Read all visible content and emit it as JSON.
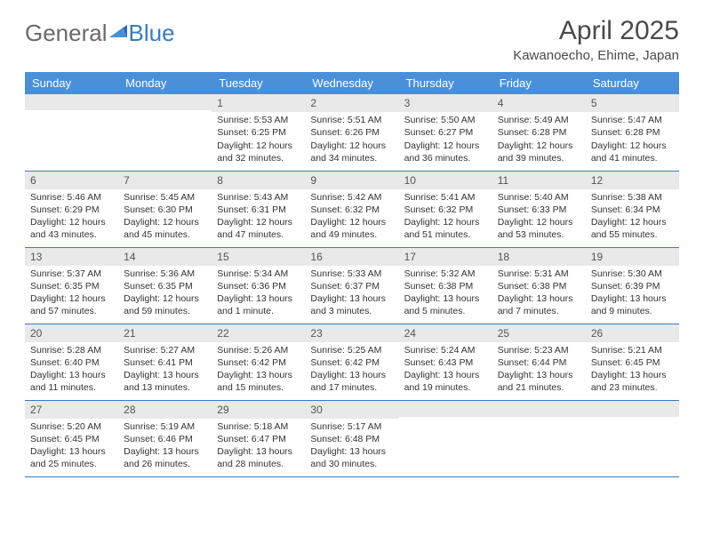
{
  "brand": {
    "part1": "General",
    "part2": "Blue"
  },
  "title": "April 2025",
  "location": "Kawanoecho, Ehime, Japan",
  "weekday_header_bg": "#4a90d9",
  "weekday_header_fg": "#ffffff",
  "daynum_bg": "#e9e9e9",
  "border_color": "#3a7bbf",
  "weekdays": [
    "Sunday",
    "Monday",
    "Tuesday",
    "Wednesday",
    "Thursday",
    "Friday",
    "Saturday"
  ],
  "weeks": [
    [
      null,
      null,
      {
        "n": "1",
        "sunrise": "5:53 AM",
        "sunset": "6:25 PM",
        "day": "12 hours and 32 minutes."
      },
      {
        "n": "2",
        "sunrise": "5:51 AM",
        "sunset": "6:26 PM",
        "day": "12 hours and 34 minutes."
      },
      {
        "n": "3",
        "sunrise": "5:50 AM",
        "sunset": "6:27 PM",
        "day": "12 hours and 36 minutes."
      },
      {
        "n": "4",
        "sunrise": "5:49 AM",
        "sunset": "6:28 PM",
        "day": "12 hours and 39 minutes."
      },
      {
        "n": "5",
        "sunrise": "5:47 AM",
        "sunset": "6:28 PM",
        "day": "12 hours and 41 minutes."
      }
    ],
    [
      {
        "n": "6",
        "sunrise": "5:46 AM",
        "sunset": "6:29 PM",
        "day": "12 hours and 43 minutes."
      },
      {
        "n": "7",
        "sunrise": "5:45 AM",
        "sunset": "6:30 PM",
        "day": "12 hours and 45 minutes."
      },
      {
        "n": "8",
        "sunrise": "5:43 AM",
        "sunset": "6:31 PM",
        "day": "12 hours and 47 minutes."
      },
      {
        "n": "9",
        "sunrise": "5:42 AM",
        "sunset": "6:32 PM",
        "day": "12 hours and 49 minutes."
      },
      {
        "n": "10",
        "sunrise": "5:41 AM",
        "sunset": "6:32 PM",
        "day": "12 hours and 51 minutes."
      },
      {
        "n": "11",
        "sunrise": "5:40 AM",
        "sunset": "6:33 PM",
        "day": "12 hours and 53 minutes."
      },
      {
        "n": "12",
        "sunrise": "5:38 AM",
        "sunset": "6:34 PM",
        "day": "12 hours and 55 minutes."
      }
    ],
    [
      {
        "n": "13",
        "sunrise": "5:37 AM",
        "sunset": "6:35 PM",
        "day": "12 hours and 57 minutes."
      },
      {
        "n": "14",
        "sunrise": "5:36 AM",
        "sunset": "6:35 PM",
        "day": "12 hours and 59 minutes."
      },
      {
        "n": "15",
        "sunrise": "5:34 AM",
        "sunset": "6:36 PM",
        "day": "13 hours and 1 minute."
      },
      {
        "n": "16",
        "sunrise": "5:33 AM",
        "sunset": "6:37 PM",
        "day": "13 hours and 3 minutes."
      },
      {
        "n": "17",
        "sunrise": "5:32 AM",
        "sunset": "6:38 PM",
        "day": "13 hours and 5 minutes."
      },
      {
        "n": "18",
        "sunrise": "5:31 AM",
        "sunset": "6:38 PM",
        "day": "13 hours and 7 minutes."
      },
      {
        "n": "19",
        "sunrise": "5:30 AM",
        "sunset": "6:39 PM",
        "day": "13 hours and 9 minutes."
      }
    ],
    [
      {
        "n": "20",
        "sunrise": "5:28 AM",
        "sunset": "6:40 PM",
        "day": "13 hours and 11 minutes."
      },
      {
        "n": "21",
        "sunrise": "5:27 AM",
        "sunset": "6:41 PM",
        "day": "13 hours and 13 minutes."
      },
      {
        "n": "22",
        "sunrise": "5:26 AM",
        "sunset": "6:42 PM",
        "day": "13 hours and 15 minutes."
      },
      {
        "n": "23",
        "sunrise": "5:25 AM",
        "sunset": "6:42 PM",
        "day": "13 hours and 17 minutes."
      },
      {
        "n": "24",
        "sunrise": "5:24 AM",
        "sunset": "6:43 PM",
        "day": "13 hours and 19 minutes."
      },
      {
        "n": "25",
        "sunrise": "5:23 AM",
        "sunset": "6:44 PM",
        "day": "13 hours and 21 minutes."
      },
      {
        "n": "26",
        "sunrise": "5:21 AM",
        "sunset": "6:45 PM",
        "day": "13 hours and 23 minutes."
      }
    ],
    [
      {
        "n": "27",
        "sunrise": "5:20 AM",
        "sunset": "6:45 PM",
        "day": "13 hours and 25 minutes."
      },
      {
        "n": "28",
        "sunrise": "5:19 AM",
        "sunset": "6:46 PM",
        "day": "13 hours and 26 minutes."
      },
      {
        "n": "29",
        "sunrise": "5:18 AM",
        "sunset": "6:47 PM",
        "day": "13 hours and 28 minutes."
      },
      {
        "n": "30",
        "sunrise": "5:17 AM",
        "sunset": "6:48 PM",
        "day": "13 hours and 30 minutes."
      },
      null,
      null,
      null
    ]
  ],
  "labels": {
    "sunrise": "Sunrise: ",
    "sunset": "Sunset: ",
    "daylight": "Daylight: "
  }
}
